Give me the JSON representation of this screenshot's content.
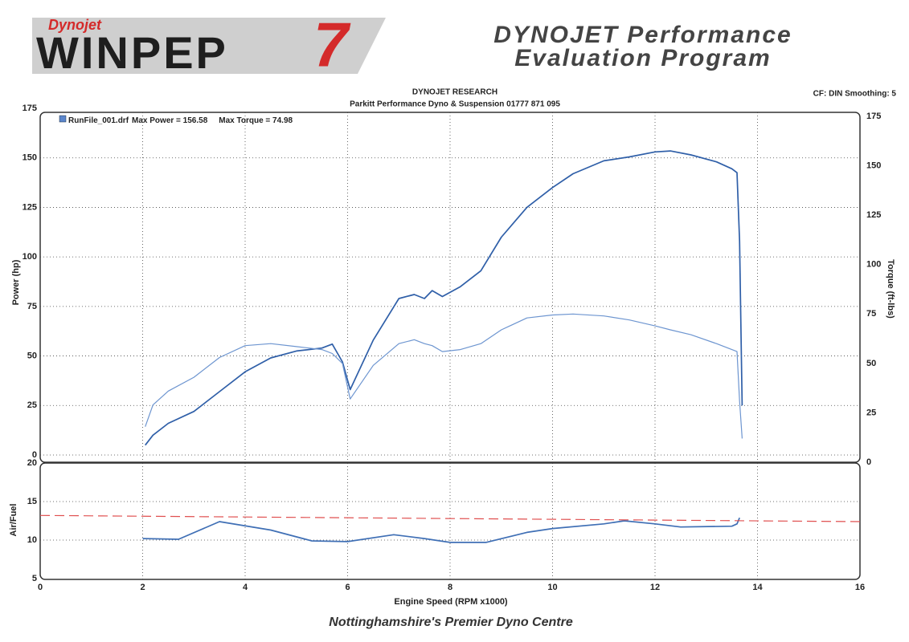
{
  "header": {
    "brand": "Dynojet",
    "logo": "WINPEP",
    "logo_number": "7",
    "title_line1": "DYNOJET Performance",
    "title_line2": "Evaluation Program"
  },
  "chart_data": [
    {
      "type": "line",
      "title": "DYNOJET RESEARCH",
      "subtitle": "Parkitt Performance Dyno & Suspension 01777 871 095",
      "settings_note": "CF: DIN  Smoothing: 5",
      "annotations": [
        "Max Power = 156.58",
        "Max Torque = 74.98"
      ],
      "ylabel": "Power (hp)",
      "y2label": "Torque (ft-lbs)",
      "ylim": [
        0,
        175
      ],
      "yticks": [
        0,
        25,
        50,
        75,
        100,
        125,
        150,
        175
      ],
      "y2lim": [
        0,
        175
      ],
      "y2ticks": [
        0,
        25,
        50,
        75,
        100,
        125,
        150,
        175
      ],
      "grid": true,
      "x": [
        2.05,
        2.2,
        2.5,
        3,
        3.5,
        4,
        4.5,
        5,
        5.5,
        5.7,
        5.9,
        6.05,
        6.5,
        7,
        7.3,
        7.5,
        7.65,
        7.85,
        8.2,
        8.6,
        9,
        9.5,
        10,
        10.4,
        11,
        11.5,
        12,
        12.3,
        12.7,
        13.2,
        13.5,
        13.6,
        13.65,
        13.7
      ],
      "series": [
        {
          "name": "RunFile_001.drf",
          "color": "#2f5fa8",
          "values": [
            5,
            10,
            16,
            22,
            32,
            42,
            49,
            52.5,
            54,
            56,
            47,
            33,
            58,
            79,
            81,
            79,
            83,
            80,
            85,
            93,
            110,
            125,
            135,
            142,
            148.5,
            150.5,
            153,
            153.5,
            151.5,
            148,
            144.5,
            142.5,
            108,
            25
          ]
        },
        {
          "color": "#6d95d0",
          "axis": "y2",
          "values": [
            18,
            29,
            36,
            43,
            53,
            59,
            60,
            58.5,
            57,
            55,
            50,
            32,
            49,
            60,
            62,
            60,
            59,
            56,
            57,
            60,
            67,
            73,
            74.5,
            75,
            74,
            72,
            69,
            67,
            64.5,
            60,
            57,
            56,
            31,
            12
          ]
        }
      ]
    },
    {
      "type": "line",
      "ylabel": "Air/Fuel",
      "xlabel": "Engine Speed (RPM x1000)",
      "xlim": [
        0,
        16
      ],
      "xticks": [
        0,
        2,
        4,
        6,
        8,
        10,
        12,
        14,
        16
      ],
      "ylim": [
        5,
        20
      ],
      "yticks": [
        5,
        10,
        15,
        20
      ],
      "grid": true,
      "series": [
        {
          "color": "#3f6fb5",
          "x": [
            2,
            2.7,
            3.5,
            4.5,
            5.3,
            6,
            6.9,
            7.5,
            8,
            8.7,
            9.5,
            10,
            11,
            11.4,
            12,
            12.5,
            13.5,
            13.6,
            13.65
          ],
          "values": [
            10.2,
            10.1,
            12.4,
            11.3,
            9.9,
            9.8,
            10.7,
            10.2,
            9.7,
            9.7,
            11,
            11.5,
            12.1,
            12.5,
            12.1,
            11.7,
            11.8,
            12.1,
            12.9
          ]
        },
        {
          "color": "#e05050",
          "dashed": true,
          "x": [
            0,
            16
          ],
          "values": [
            13.2,
            12.4
          ]
        }
      ]
    }
  ],
  "footer": "Nottinghamshire's Premier Dyno Centre"
}
